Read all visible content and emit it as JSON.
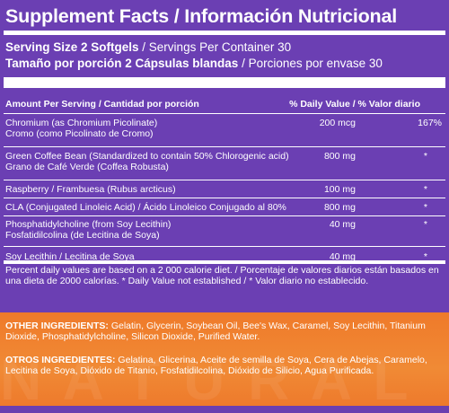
{
  "title": "Supplement Facts / Información Nutricional",
  "serving": {
    "line1_bold": "Serving Size 2 Softgels",
    "line1_rest": " / Servings Per Container 30",
    "line2_bold": "Tamaño por porción 2 Cápsulas blandas",
    "line2_rest": " / Porciones por envase 30"
  },
  "table_header": {
    "amount": "Amount Per Serving / Cantidad por porción",
    "dv": "% Daily Value / % Valor diario"
  },
  "rows": [
    {
      "name1": "Chromium (as Chromium Picolinate)",
      "name2": "Cromo (como Picolinato de Cromo)",
      "amount": "200 mcg",
      "dv": "167%"
    },
    {
      "name1": "Green Coffee Bean (Standardized to contain 50% Chlorogenic acid)",
      "name2": "Grano de Café Verde (Coffea Robusta)",
      "amount": "800 mg",
      "dv": "*"
    },
    {
      "name1": "Raspberry / Frambuesa (Rubus arcticus)",
      "name2": "",
      "amount": "100 mg",
      "dv": "*"
    },
    {
      "name1": "CLA (Conjugated Linoleic Acid) / Ácido Linoleico Conjugado al 80%",
      "name2": "",
      "amount": "800 mg",
      "dv": "*"
    },
    {
      "name1": "Phosphatidylcholine (from Soy Lecithin)",
      "name2": "Fosfatidilcolina (de Lecitina de Soya)",
      "amount": "40 mg",
      "dv": "*"
    },
    {
      "name1": "Soy Lecithin / Lecitina de Soya",
      "name2": "",
      "amount": "40 mg",
      "dv": "*"
    }
  ],
  "footnote": "Percent daily values are based on a 2 000 calorie diet.  / Porcentaje de valores diarios están basados en una dieta de 2000 calorías. * Daily Value not established / * Valor diario no establecido.",
  "other_ingredients": {
    "label": "OTHER INGREDIENTS:",
    "text": " Gelatin, Glycerin, Soybean Oil, Bee's Wax, Caramel, Soy Lecithin, Titanium Dioxide, Phosphatidylcholine, Silicon Dioxide, Purified Water."
  },
  "otros_ingredientes": {
    "label": "OTROS INGREDIENTES:",
    "text": " Gelatina, Glicerina, Aceite de semilla de Soya, Cera de Abejas, Caramelo, Lecitina de Soya, Dióxido de Titanio, Fosfatidilcolina, Dióxido de Silicio, Agua Purificada."
  },
  "colors": {
    "panel": "#6b3fb3",
    "accent": "#ef7a2a",
    "text": "#ffffff"
  }
}
